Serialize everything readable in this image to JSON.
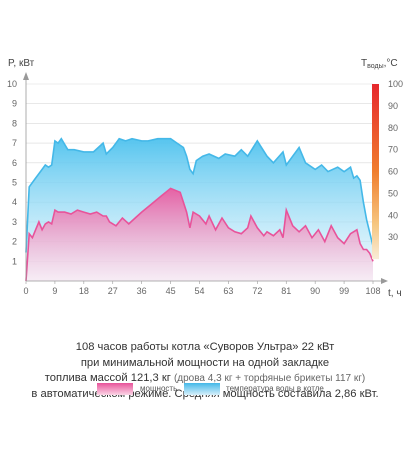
{
  "chart_data": {
    "type": "area",
    "x_ticks": [
      0,
      9,
      18,
      27,
      36,
      45,
      54,
      63,
      72,
      81,
      90,
      99,
      108
    ],
    "x_unit_label": "t, ч",
    "y_left_label": "P, кВт",
    "y_left_ticks": [
      1,
      2,
      3,
      4,
      5,
      6,
      7,
      8,
      9,
      10
    ],
    "y_left_lim": [
      0,
      10
    ],
    "y_right_label_main": "T",
    "y_right_label_sub": "воды",
    "y_right_label_unit": ",°C",
    "y_right_ticks": [
      30,
      40,
      50,
      60,
      70,
      80,
      90,
      100
    ],
    "y_right_lim": [
      10,
      100
    ],
    "series": [
      {
        "name": "температура воды в котле",
        "color": "#44b8e8",
        "axis": "right",
        "x": [
          0,
          1,
          3,
          5,
          6,
          7,
          8,
          9,
          10,
          11,
          13,
          15,
          18,
          21,
          24,
          25,
          27,
          29,
          31,
          33,
          36,
          38,
          41,
          43,
          45,
          47,
          49,
          50,
          51,
          52,
          53,
          55,
          57,
          60,
          62,
          65,
          67,
          69,
          72,
          75,
          77,
          80,
          81,
          83,
          85,
          87,
          90,
          92,
          94,
          97,
          99,
          101,
          102,
          103,
          104,
          105,
          106,
          107,
          108
        ],
        "y": [
          23,
          53,
          57,
          61,
          63,
          62,
          63,
          74,
          73,
          75,
          70,
          70,
          69,
          69,
          73,
          68,
          71,
          75,
          74,
          75,
          74,
          74,
          75,
          75,
          75,
          73,
          71,
          67,
          61,
          59,
          65,
          67,
          68,
          66,
          68,
          67,
          70,
          67,
          74,
          67,
          64,
          69,
          63,
          67,
          71,
          64,
          61,
          63,
          60,
          62,
          60,
          62,
          57,
          58,
          56,
          46,
          38,
          32,
          26
        ]
      },
      {
        "name": "мощность",
        "color": "#e8539a",
        "axis": "left",
        "x": [
          0,
          1,
          2,
          3,
          4,
          5,
          6,
          7,
          8,
          9,
          10,
          12,
          14,
          16,
          18,
          20,
          22,
          24,
          25,
          26,
          28,
          30,
          32,
          34,
          36,
          39,
          42,
          45,
          48,
          50,
          51,
          52,
          54,
          56,
          57,
          59,
          61,
          63,
          65,
          67,
          69,
          70,
          72,
          74,
          75,
          77,
          79,
          80,
          81,
          83,
          85,
          87,
          89,
          91,
          93,
          95,
          97,
          99,
          101,
          103,
          104,
          105,
          106,
          107,
          108
        ],
        "y": [
          0,
          2.4,
          2.2,
          2.6,
          3.0,
          2.6,
          2.9,
          3.0,
          2.9,
          3.6,
          3.5,
          3.5,
          3.4,
          3.6,
          3.5,
          3.4,
          3.5,
          3.3,
          3.3,
          3.0,
          2.8,
          3.2,
          2.9,
          3.2,
          3.5,
          3.9,
          4.3,
          4.7,
          4.5,
          3.5,
          2.7,
          3.5,
          3.3,
          2.9,
          3.3,
          2.6,
          3.2,
          2.7,
          2.5,
          2.4,
          2.7,
          3.3,
          2.7,
          2.3,
          2.5,
          2.3,
          2.6,
          2.2,
          3.6,
          2.8,
          2.5,
          2.8,
          2.2,
          2.6,
          2.0,
          2.8,
          2.2,
          1.9,
          2.4,
          2.6,
          1.9,
          1.6,
          1.6,
          1.4,
          1.0
        ]
      }
    ],
    "legend": "bottom"
  },
  "caption": {
    "line1": "108 часов работы котла «Суворов Ультра» 22 кВт",
    "line2": "при минимальной мощности на одной закладке",
    "line3_main": "топлива массой 121,3 кг",
    "line3_sub": "(дрова 4,3 кг + торфяные брикеты 117 кг)",
    "line4": "в автоматическом режиме. Средняя мощность составила 2,86 кВт."
  },
  "colors": {
    "power": "#e8539a",
    "temperature": "#44b8e8",
    "temp_scale_top": "#e6282d",
    "temp_scale_bottom": "#f5e6cc"
  }
}
